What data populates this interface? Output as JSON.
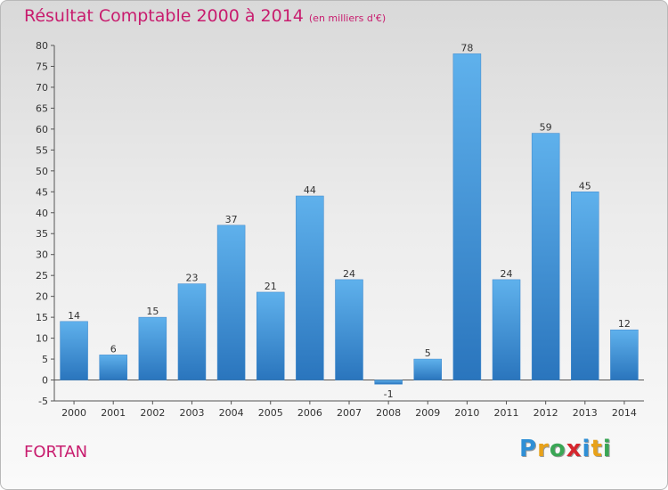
{
  "header": {
    "title": "Résultat Comptable 2000 à 2014",
    "subtitle": "(en milliers d'€)"
  },
  "footer": {
    "town": "FORTAN",
    "brand": "Proxiti"
  },
  "colors": {
    "title": "#c81c6e",
    "bar_top": "#5fb1ec",
    "bar_bottom": "#2a75bd"
  },
  "chart_data": {
    "type": "bar",
    "title": "Résultat Comptable 2000 à 2014",
    "subtitle": "(en milliers d'€)",
    "categories": [
      "2000",
      "2001",
      "2002",
      "2003",
      "2004",
      "2005",
      "2006",
      "2007",
      "2008",
      "2009",
      "2010",
      "2011",
      "2012",
      "2013",
      "2014"
    ],
    "values": [
      14,
      6,
      15,
      23,
      37,
      21,
      44,
      24,
      -1,
      5,
      78,
      24,
      59,
      45,
      12
    ],
    "data_labels": [
      "14",
      "6",
      "15",
      "23",
      "37",
      "21",
      "44",
      "24",
      "-1",
      "5",
      "78",
      "24",
      "59",
      "45",
      "12"
    ],
    "ylim": [
      -5,
      80
    ],
    "yticks": [
      -5,
      0,
      5,
      10,
      15,
      20,
      25,
      30,
      35,
      40,
      45,
      50,
      55,
      60,
      65,
      70,
      75,
      80
    ],
    "ytick_labels": [
      "-5",
      "0",
      "5",
      "10",
      "15",
      "20",
      "25",
      "30",
      "35",
      "40",
      "45",
      "50",
      "55",
      "60",
      "65",
      "70",
      "75",
      "80"
    ],
    "grid": false,
    "legend": "none"
  }
}
